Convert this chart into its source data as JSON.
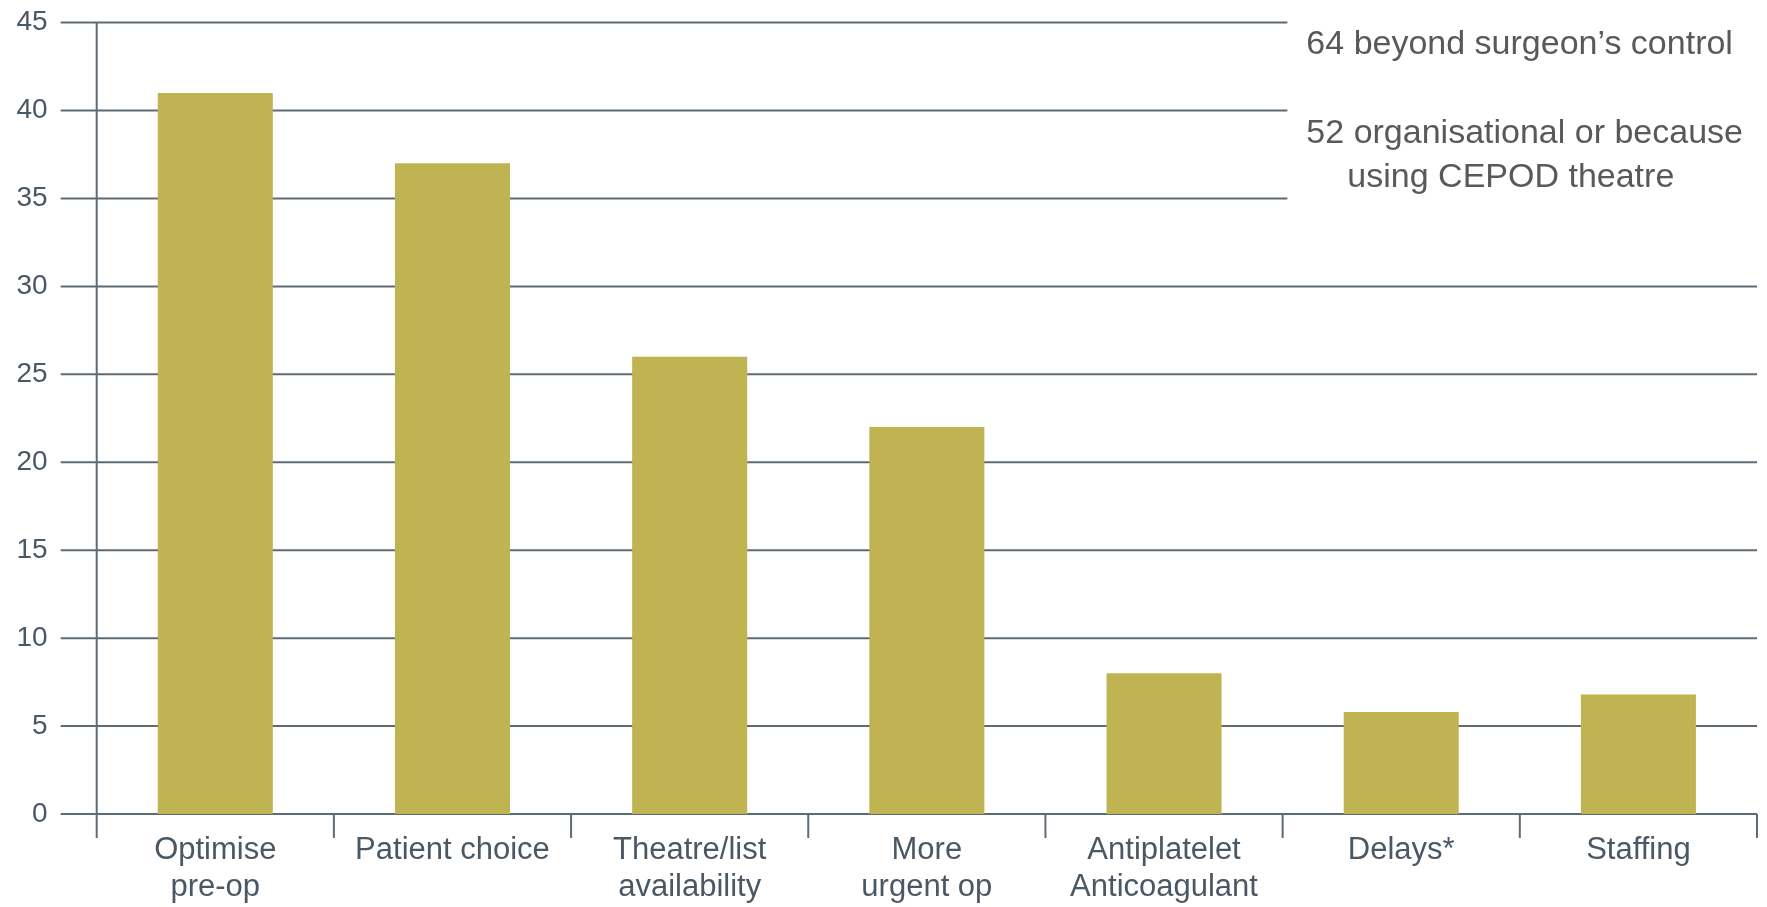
{
  "chart_data": {
    "type": "bar",
    "categories": [
      "Optimise\npre-op",
      "Patient choice",
      "Theatre/list\navailability",
      "More\nurgent op",
      "Antiplatelet\nAnticoagulant",
      "Delays*",
      "Staffing"
    ],
    "values": [
      41,
      37,
      26,
      22,
      8,
      5.8,
      6.8
    ],
    "color": "#bfb451",
    "ylim": [
      0,
      45
    ],
    "yticks": [
      0,
      5,
      10,
      15,
      20,
      25,
      30,
      35,
      40,
      45
    ],
    "grid": "y",
    "annotations": [
      "64 beyond surgeon’s control",
      "52 organisational or because\nusing CEPOD theatre"
    ]
  }
}
